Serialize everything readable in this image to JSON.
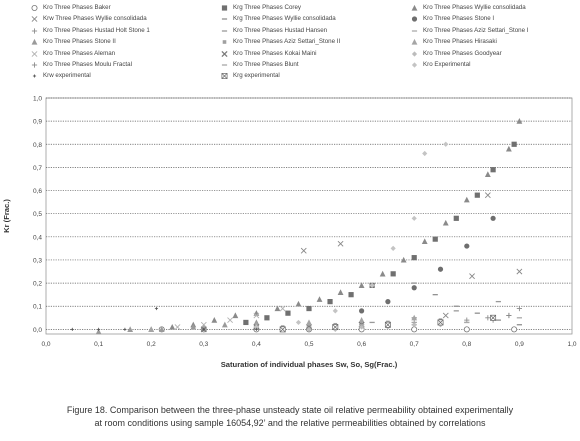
{
  "chart_data": {
    "type": "scatter",
    "xlabel": "Saturation of individual phases Sw, So, Sg(Frac.)",
    "ylabel": "Kr (Frac.)",
    "xlim": [
      0,
      1
    ],
    "ylim": [
      -0.02,
      1.0
    ],
    "x_ticks": [
      "0,0",
      "0,1",
      "0,2",
      "0,3",
      "0,4",
      "0,5",
      "0,6",
      "0,7",
      "0,8",
      "0,9",
      "1,0"
    ],
    "y_ticks": [
      "0,0",
      "0,1",
      "0,2",
      "0,3",
      "0,4",
      "0,5",
      "0,6",
      "0,7",
      "0,8",
      "0,9",
      "1,0"
    ],
    "grid": "horizontal",
    "legend_position": "top",
    "series": [
      {
        "name": "Kro Three Phases Baker",
        "marker": "circle-open",
        "color": "#777777",
        "x": [
          0.22,
          0.3,
          0.4,
          0.5,
          0.6,
          0.7,
          0.8,
          0.89
        ],
        "y": [
          0.0,
          0.0,
          0.0,
          0.0,
          0.0,
          0.0,
          0.0,
          0.0
        ]
      },
      {
        "name": "Krg Three Phases Corey",
        "marker": "square",
        "color": "#707070",
        "x": [
          0.38,
          0.42,
          0.46,
          0.5,
          0.54,
          0.58,
          0.62,
          0.66,
          0.7,
          0.74,
          0.78,
          0.82,
          0.85,
          0.89
        ],
        "y": [
          0.03,
          0.05,
          0.07,
          0.09,
          0.12,
          0.15,
          0.19,
          0.24,
          0.31,
          0.39,
          0.48,
          0.58,
          0.69,
          0.8
        ]
      },
      {
        "name": "Kro Three Phases Wyllie consolidada",
        "marker": "triangle",
        "color": "#8a8a8a",
        "x": [
          0.2,
          0.24,
          0.28,
          0.32,
          0.36,
          0.4,
          0.44,
          0.48,
          0.52,
          0.56,
          0.6,
          0.64,
          0.68,
          0.72,
          0.76,
          0.8,
          0.84,
          0.88,
          0.9
        ],
        "y": [
          0.0,
          0.01,
          0.02,
          0.04,
          0.06,
          0.07,
          0.09,
          0.11,
          0.13,
          0.16,
          0.19,
          0.24,
          0.3,
          0.38,
          0.46,
          0.56,
          0.67,
          0.78,
          0.9
        ]
      },
      {
        "name": "Krw Three Phases Wyllie consolidada",
        "marker": "x",
        "color": "#888888",
        "x": [
          0.49,
          0.56,
          0.76,
          0.81,
          0.84,
          0.9
        ],
        "y": [
          0.34,
          0.37,
          0.06,
          0.23,
          0.58,
          0.25
        ]
      },
      {
        "name": "Krg Three Phases Wyllie consolidada",
        "marker": "dash",
        "color": "#909090",
        "x": [
          0.7,
          0.74,
          0.78,
          0.82,
          0.86,
          0.9
        ],
        "y": [
          0.2,
          0.15,
          0.1,
          0.07,
          0.04,
          0.02
        ]
      },
      {
        "name": "Kro Three Phases Stone I",
        "marker": "circle",
        "color": "#6e6e6e",
        "x": [
          0.6,
          0.65,
          0.7,
          0.75,
          0.8,
          0.85
        ],
        "y": [
          0.08,
          0.12,
          0.18,
          0.26,
          0.36,
          0.48
        ]
      },
      {
        "name": "Kro Three Phases Hustad Holt Stone 1",
        "marker": "plus",
        "color": "#8c8c8c",
        "x": [
          0.5,
          0.6,
          0.7,
          0.8,
          0.84,
          0.88
        ],
        "y": [
          0.01,
          0.02,
          0.03,
          0.04,
          0.05,
          0.06
        ]
      },
      {
        "name": "Kro Three Phases Hustad Hansen",
        "marker": "dash",
        "color": "#999999",
        "x": [
          0.55,
          0.62,
          0.7,
          0.78,
          0.86
        ],
        "y": [
          0.02,
          0.03,
          0.05,
          0.08,
          0.12
        ]
      },
      {
        "name": "Kro Three Phases Aziz Settari_Stone I",
        "marker": "dash",
        "color": "#aaaaaa",
        "x": [
          0.6,
          0.7,
          0.8,
          0.9
        ],
        "y": [
          0.01,
          0.02,
          0.03,
          0.05
        ]
      },
      {
        "name": "Kro Three Phases Stone II",
        "marker": "triangle",
        "color": "#9a9a9a",
        "x": [
          0.1,
          0.16,
          0.22,
          0.28,
          0.34,
          0.4
        ],
        "y": [
          -0.01,
          0.0,
          0.0,
          0.01,
          0.02,
          0.03
        ]
      },
      {
        "name": "Kro Three Phases Aziz Settari_Stone II",
        "marker": "square-small",
        "color": "#a0a0a0",
        "x": [
          0.45,
          0.55,
          0.65,
          0.75
        ],
        "y": [
          0.01,
          0.02,
          0.03,
          0.04
        ]
      },
      {
        "name": "Kro Three Phases Hirasaki",
        "marker": "triangle",
        "color": "#a5a5a5",
        "x": [
          0.2,
          0.3,
          0.4,
          0.5,
          0.6,
          0.7
        ],
        "y": [
          0.0,
          0.01,
          0.02,
          0.03,
          0.04,
          0.05
        ]
      },
      {
        "name": "Kro Three Phases Aleman",
        "marker": "x",
        "color": "#b0b0b0",
        "x": [
          0.25,
          0.3,
          0.35,
          0.4,
          0.45
        ],
        "y": [
          0.01,
          0.02,
          0.04,
          0.06,
          0.09
        ]
      },
      {
        "name": "Kro Three Phases Kokai Maini",
        "marker": "x-bold",
        "color": "#7a7a7a",
        "x": [
          0.3,
          0.4,
          0.5,
          0.6
        ],
        "y": [
          0.0,
          0.01,
          0.01,
          0.02
        ]
      },
      {
        "name": "Kro Three Phases Goodyear",
        "marker": "diamond",
        "color": "#bcbcbc",
        "x": [
          0.5,
          0.55,
          0.6,
          0.65,
          0.7,
          0.75
        ],
        "y": [
          0.0,
          0.0,
          0.01,
          0.01,
          0.02,
          0.02
        ]
      },
      {
        "name": "Kro Three Phases Moulu Fractal",
        "marker": "plus",
        "color": "#8c8c8c",
        "x": [
          0.85,
          0.88,
          0.9
        ],
        "y": [
          0.04,
          0.06,
          0.09
        ]
      },
      {
        "name": "Kro Three Phases Blunt",
        "marker": "dash",
        "color": "#a8a8a8",
        "x": [
          0.4,
          0.5,
          0.6,
          0.7,
          0.8
        ],
        "y": [
          0.01,
          0.02,
          0.02,
          0.03,
          0.03
        ]
      },
      {
        "name": "Kro Experimental",
        "marker": "diamond",
        "color": "#c4c4c4",
        "x": [
          0.4,
          0.48,
          0.55,
          0.62,
          0.66,
          0.7,
          0.72,
          0.76
        ],
        "y": [
          0.01,
          0.03,
          0.08,
          0.19,
          0.35,
          0.48,
          0.76,
          0.8
        ]
      },
      {
        "name": "Krw experimental",
        "marker": "star",
        "color": "#555555",
        "x": [
          0.05,
          0.1,
          0.15,
          0.21,
          0.3,
          0.4
        ],
        "y": [
          0.0,
          0.0,
          0.0,
          0.09,
          0.0,
          0.0
        ]
      },
      {
        "name": "Krg experimental",
        "marker": "x-square",
        "color": "#666666",
        "x": [
          0.45,
          0.55,
          0.65,
          0.75,
          0.85
        ],
        "y": [
          0.0,
          0.01,
          0.02,
          0.03,
          0.05
        ]
      }
    ]
  },
  "caption": {
    "line1": "Figure 18. Comparison between the three-phase unsteady state oil relative permeability obtained experimentally",
    "line2": "at room conditions using sample 16054,92’ and the relative permeabilities obtained by correlations"
  }
}
